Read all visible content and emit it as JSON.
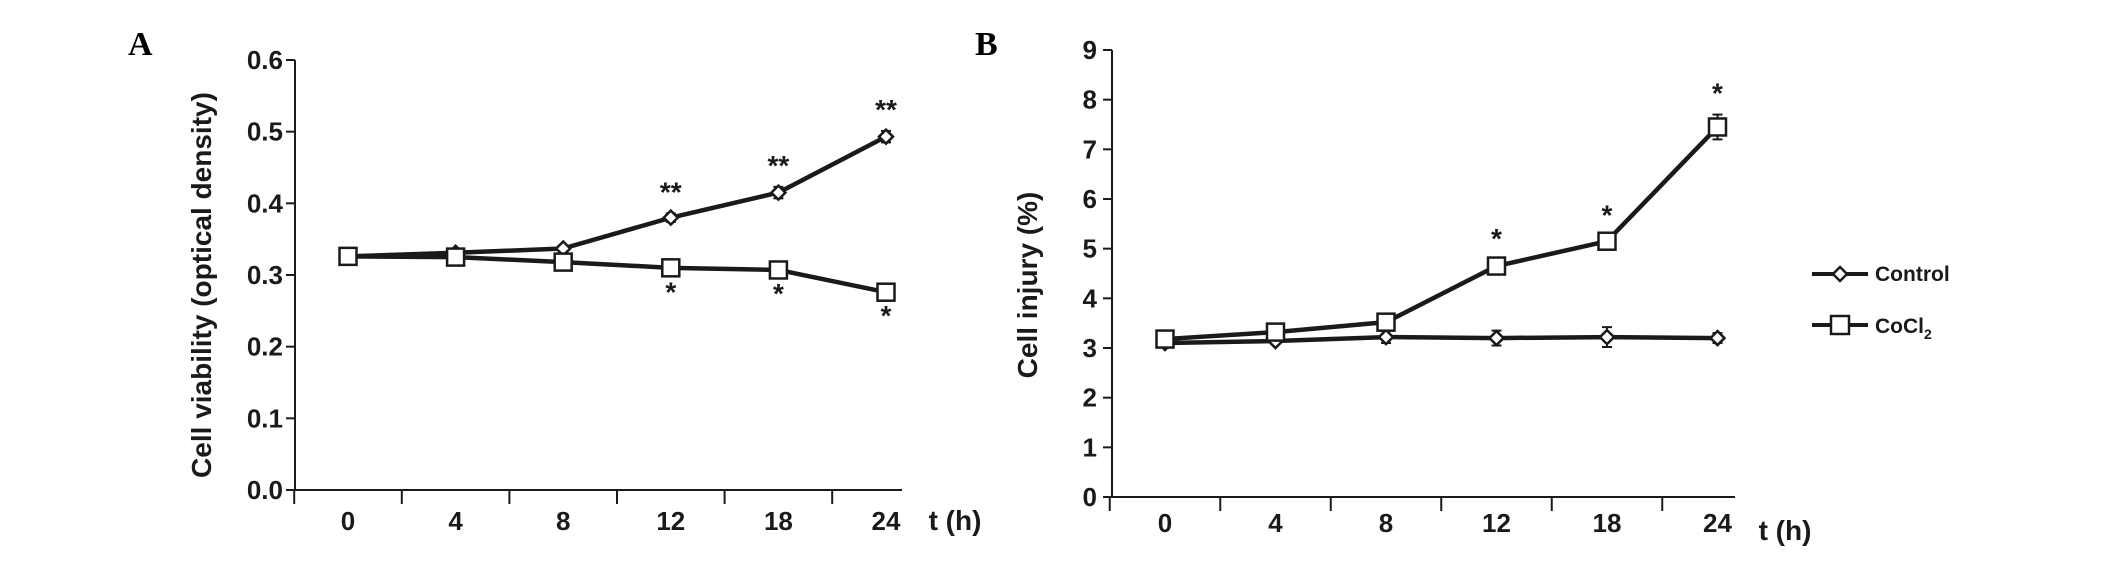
{
  "chart_data": [
    {
      "type": "line",
      "panel": "A",
      "categories": [
        "0",
        "4",
        "8",
        "12",
        "18",
        "24"
      ],
      "xlabel": "t (h)",
      "ylabel": "Cell viability (optical density)",
      "ylim": [
        0.0,
        0.6
      ],
      "yticks": [
        "0.0",
        "0.1",
        "0.2",
        "0.3",
        "0.4",
        "0.5",
        "0.6"
      ],
      "grid": false,
      "series": [
        {
          "name": "Control",
          "marker": "diamond",
          "values": [
            0.326,
            0.331,
            0.337,
            0.38,
            0.415,
            0.493
          ],
          "errors": [
            0.003,
            0.003,
            0.004,
            0.006,
            0.008,
            0.008
          ]
        },
        {
          "name": "CoCl2",
          "marker": "square",
          "values": [
            0.326,
            0.325,
            0.318,
            0.31,
            0.307,
            0.276
          ],
          "errors": [
            0.004,
            0.004,
            0.01,
            0.005,
            0.004,
            0.004
          ]
        }
      ],
      "annotations": [
        {
          "x": "12",
          "series": "Control",
          "text": "**",
          "position": "above"
        },
        {
          "x": "18",
          "series": "Control",
          "text": "**",
          "position": "above"
        },
        {
          "x": "24",
          "series": "Control",
          "text": "**",
          "position": "above"
        },
        {
          "x": "12",
          "series": "CoCl2",
          "text": "*",
          "position": "below"
        },
        {
          "x": "18",
          "series": "CoCl2",
          "text": "*",
          "position": "below"
        },
        {
          "x": "24",
          "series": "CoCl2",
          "text": "*",
          "position": "below"
        }
      ]
    },
    {
      "type": "line",
      "panel": "B",
      "categories": [
        "0",
        "4",
        "8",
        "12",
        "18",
        "24"
      ],
      "xlabel": "t (h)",
      "ylabel": "Cell injury  (%)",
      "ylim": [
        0,
        9
      ],
      "yticks": [
        "0",
        "1",
        "2",
        "3",
        "4",
        "5",
        "6",
        "7",
        "8",
        "9"
      ],
      "grid": false,
      "series": [
        {
          "name": "Control",
          "marker": "diamond",
          "values": [
            3.1,
            3.14,
            3.22,
            3.2,
            3.22,
            3.2
          ],
          "errors": [
            0.05,
            0.06,
            0.12,
            0.15,
            0.2,
            0.1
          ]
        },
        {
          "name": "CoCl2",
          "marker": "square",
          "values": [
            3.18,
            3.32,
            3.52,
            4.65,
            5.15,
            7.45
          ],
          "errors": [
            0.05,
            0.08,
            0.1,
            0.12,
            0.1,
            0.25
          ]
        }
      ],
      "annotations": [
        {
          "x": "12",
          "series": "CoCl2",
          "text": "*",
          "position": "above"
        },
        {
          "x": "18",
          "series": "CoCl2",
          "text": "*",
          "position": "above"
        },
        {
          "x": "24",
          "series": "CoCl2",
          "text": "*",
          "position": "above"
        }
      ]
    }
  ],
  "legend": {
    "placement": "right",
    "items": [
      {
        "label": "Control",
        "marker": "diamond"
      },
      {
        "label_main": "CoCl",
        "label_sub": "2",
        "marker": "square"
      }
    ]
  },
  "colors": {
    "line": "#1a1a1a",
    "background": "#ffffff"
  }
}
